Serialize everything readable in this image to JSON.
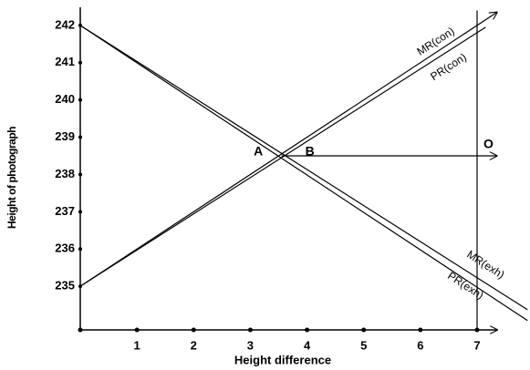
{
  "chart_data": {
    "type": "line",
    "xlabel": "Height difference",
    "ylabel": "Height of photograph",
    "xlim": [
      0,
      7
    ],
    "ylim": [
      233.83,
      242.5
    ],
    "xticks": [
      1,
      2,
      3,
      4,
      5,
      6,
      7
    ],
    "yticks": [
      235,
      236,
      237,
      238,
      239,
      240,
      241,
      242
    ],
    "series": [
      {
        "name": "MR(con)",
        "color": "#000000",
        "x": [
          0,
          7.35
        ],
        "y": [
          235,
          242.35
        ]
      },
      {
        "name": "PR(con)",
        "color": "#000000",
        "x": [
          0,
          7.15
        ],
        "y": [
          235,
          241.95
        ]
      },
      {
        "name": "MR(exh)",
        "color": "#000000",
        "x": [
          0,
          7.89
        ],
        "y": [
          242,
          234.37
        ]
      },
      {
        "name": "PR(exh)",
        "color": "#000000",
        "x": [
          0,
          7.89
        ],
        "y": [
          242,
          234.08
        ]
      }
    ],
    "lines": [
      {
        "x": [
          3.55,
          7.35
        ],
        "y": [
          238.5,
          238.5
        ]
      },
      {
        "x": [
          7,
          7
        ],
        "y": [
          233.83,
          242.4
        ]
      }
    ],
    "annotations": [
      {
        "text": "A",
        "x": 3.14,
        "y": 238.6
      },
      {
        "text": "B",
        "x": 4.05,
        "y": 238.6
      },
      {
        "text": "O",
        "x": 7.2,
        "y": 238.8
      }
    ]
  }
}
